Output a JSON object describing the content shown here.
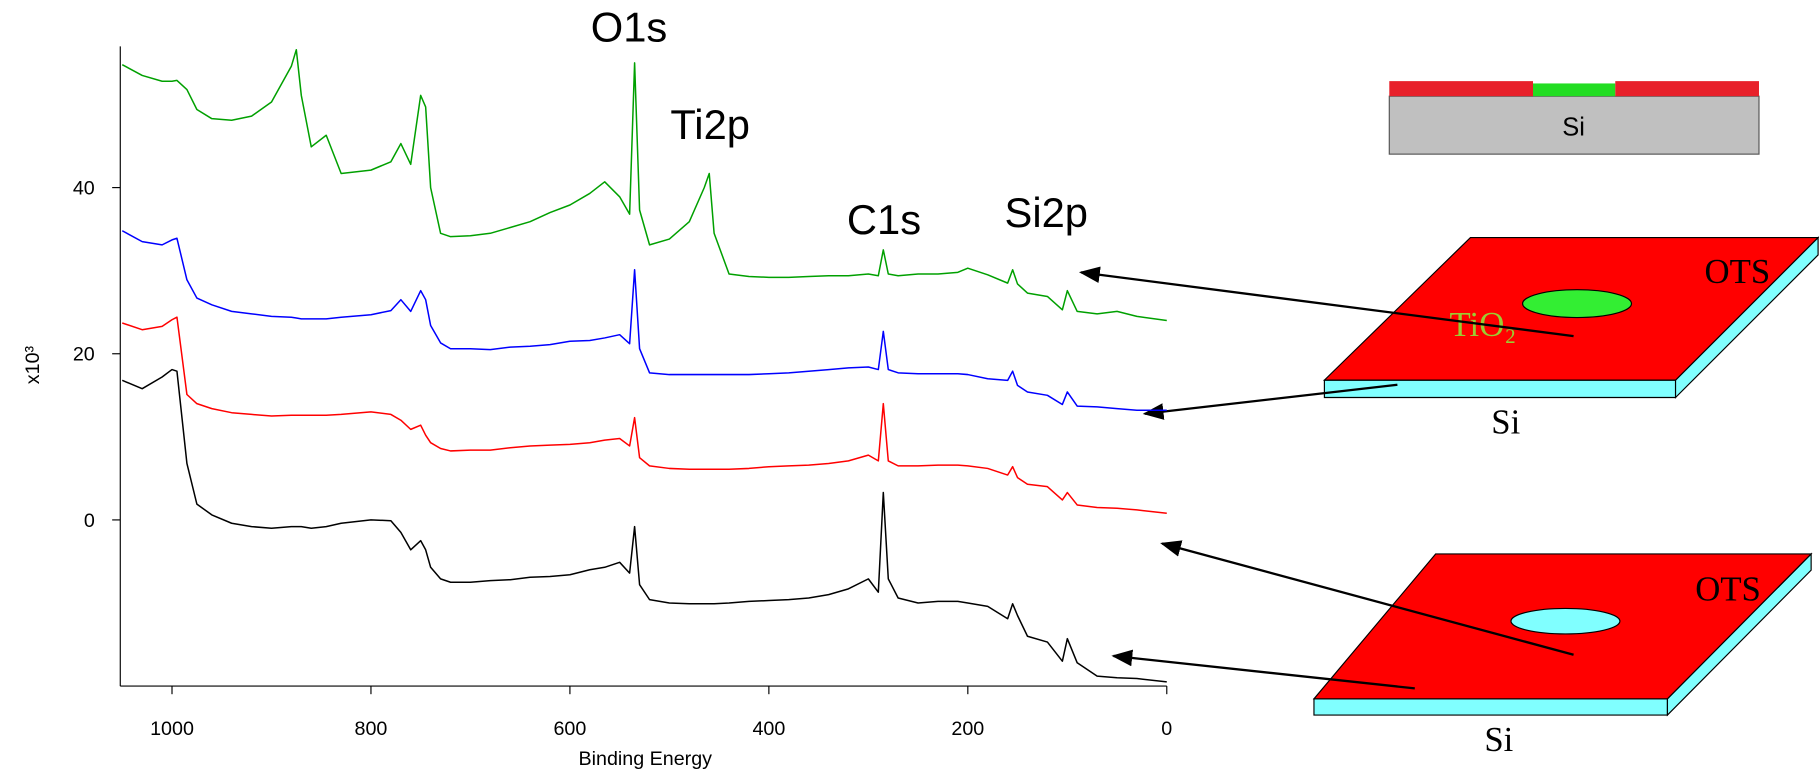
{
  "chart_data": {
    "type": "line",
    "xlabel": "Binding Energy",
    "ylabel": "x10³",
    "xlim": [
      1052,
      0
    ],
    "ylim": [
      -20,
      57
    ],
    "xticks": [
      1000,
      800,
      600,
      400,
      200,
      0
    ],
    "yticks": [
      0,
      20,
      40
    ],
    "grid": false,
    "x": [
      1050,
      1030,
      1010,
      1000,
      995,
      985,
      975,
      960,
      940,
      920,
      900,
      880,
      875,
      870,
      860,
      845,
      830,
      800,
      780,
      770,
      760,
      750,
      745,
      740,
      730,
      720,
      700,
      680,
      660,
      640,
      620,
      600,
      580,
      565,
      550,
      540,
      535,
      530,
      520,
      500,
      480,
      465,
      460,
      455,
      440,
      420,
      400,
      380,
      360,
      340,
      320,
      300,
      290,
      285,
      280,
      270,
      250,
      230,
      210,
      200,
      180,
      160,
      155,
      150,
      140,
      120,
      105,
      100,
      90,
      70,
      50,
      30,
      0
    ],
    "series": [
      {
        "color": "#000000",
        "values": [
          16.8,
          15.8,
          17.2,
          18.1,
          17.9,
          6.8,
          1.9,
          0.6,
          -0.4,
          -0.8,
          -1.0,
          -0.8,
          -0.8,
          -0.8,
          -1.0,
          -0.8,
          -0.4,
          0,
          -0.1,
          -1.5,
          -3.6,
          -2.5,
          -3.6,
          -5.7,
          -7.1,
          -7.5,
          -7.5,
          -7.3,
          -7.2,
          -6.9,
          -6.8,
          -6.6,
          -6.0,
          -5.7,
          -5.1,
          -6.4,
          -0.8,
          -7.8,
          -9.6,
          -10.0,
          -10.1,
          -10.1,
          -10.1,
          -10.1,
          -10.0,
          -9.8,
          -9.7,
          -9.6,
          -9.4,
          -9.0,
          -8.3,
          -7.1,
          -8.7,
          3.3,
          -7.1,
          -9.4,
          -10.0,
          -9.8,
          -9.8,
          -10.0,
          -10.4,
          -11.9,
          -10.1,
          -11.5,
          -14.0,
          -14.7,
          -17.0,
          -14.3,
          -17.2,
          -18.8,
          -19.0,
          -19.1,
          -19.5
        ]
      },
      {
        "color": "#ff0000",
        "values": [
          23.7,
          22.9,
          23.3,
          24.1,
          24.4,
          15.1,
          14.0,
          13.4,
          12.9,
          12.7,
          12.5,
          12.6,
          12.6,
          12.6,
          12.6,
          12.6,
          12.7,
          13.0,
          12.7,
          12.0,
          10.9,
          11.4,
          10.2,
          9.3,
          8.6,
          8.3,
          8.4,
          8.4,
          8.7,
          8.9,
          9.0,
          9.1,
          9.3,
          9.6,
          9.8,
          8.9,
          12.3,
          7.5,
          6.5,
          6.2,
          6.1,
          6.1,
          6.1,
          6.1,
          6.1,
          6.2,
          6.4,
          6.5,
          6.6,
          6.8,
          7.1,
          7.8,
          7.1,
          14.0,
          7.1,
          6.5,
          6.5,
          6.6,
          6.6,
          6.5,
          6.2,
          5.4,
          6.4,
          5.1,
          4.3,
          4.0,
          2.4,
          3.3,
          1.8,
          1.5,
          1.4,
          1.2,
          0.8
        ]
      },
      {
        "color": "#0000ff",
        "values": [
          34.8,
          33.5,
          33.1,
          33.7,
          33.9,
          28.9,
          26.7,
          25.9,
          25.1,
          24.8,
          24.5,
          24.4,
          24.3,
          24.2,
          24.2,
          24.2,
          24.4,
          24.7,
          25.2,
          26.5,
          25.1,
          27.6,
          26.5,
          23.4,
          21.3,
          20.6,
          20.6,
          20.5,
          20.8,
          20.9,
          21.1,
          21.5,
          21.6,
          21.9,
          22.3,
          21.2,
          30.1,
          20.6,
          17.7,
          17.5,
          17.5,
          17.5,
          17.5,
          17.5,
          17.5,
          17.5,
          17.6,
          17.7,
          17.9,
          18.1,
          18.3,
          18.4,
          18.1,
          22.7,
          18.1,
          17.7,
          17.6,
          17.6,
          17.6,
          17.5,
          17.0,
          16.8,
          17.9,
          16.2,
          15.4,
          15.0,
          13.9,
          15.4,
          13.7,
          13.6,
          13.4,
          13.2,
          13.2
        ]
      },
      {
        "color": "#00a000",
        "values": [
          54.8,
          53.5,
          52.8,
          52.8,
          52.9,
          51.8,
          49.4,
          48.3,
          48.1,
          48.6,
          50.3,
          54.6,
          56.6,
          51.1,
          44.9,
          46.3,
          41.7,
          42.1,
          43.1,
          45.3,
          42.8,
          51.1,
          49.7,
          40.0,
          34.5,
          34.1,
          34.2,
          34.5,
          35.2,
          35.9,
          37.0,
          37.9,
          39.3,
          40.7,
          38.9,
          36.8,
          55.0,
          37.3,
          33.1,
          33.8,
          35.9,
          40.0,
          41.7,
          34.5,
          29.6,
          29.3,
          29.2,
          29.2,
          29.3,
          29.4,
          29.4,
          29.6,
          29.4,
          32.5,
          29.6,
          29.4,
          29.6,
          29.6,
          29.8,
          30.3,
          29.5,
          28.5,
          30.1,
          28.4,
          27.3,
          26.9,
          25.3,
          27.6,
          25.1,
          24.8,
          25.1,
          24.5,
          24.0
        ]
      }
    ],
    "annotations": [
      "O1s",
      "Ti2p",
      "C1s",
      "Si2p"
    ],
    "diagram_labels": [
      "Si",
      "OTS",
      "TiO₂",
      "Si",
      "OTS",
      "Si"
    ]
  }
}
